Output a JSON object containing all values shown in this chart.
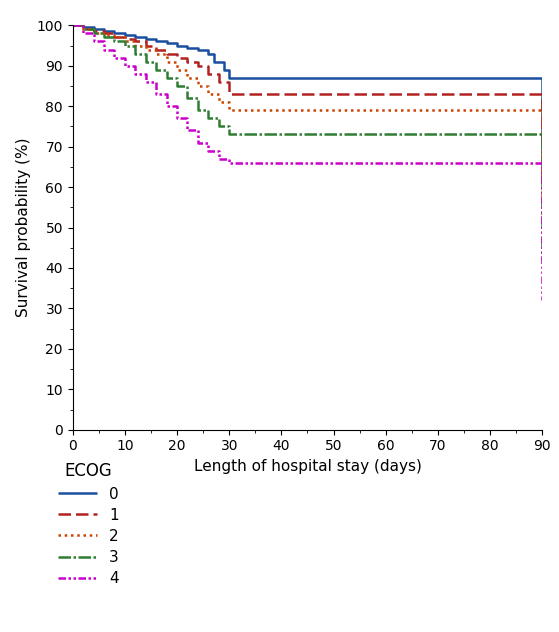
{
  "curves": {
    "0": {
      "x": [
        0,
        2,
        4,
        6,
        8,
        10,
        12,
        14,
        16,
        18,
        20,
        22,
        24,
        26,
        27,
        29,
        30,
        80,
        90
      ],
      "y": [
        100,
        99.5,
        99,
        98.5,
        98,
        97.5,
        97,
        96.5,
        96,
        95.5,
        95,
        94.5,
        94,
        93,
        91,
        89,
        87,
        87,
        69
      ],
      "color": "#1a4fa0",
      "label": "0"
    },
    "1": {
      "x": [
        0,
        2,
        4,
        6,
        8,
        10,
        12,
        14,
        16,
        18,
        20,
        22,
        24,
        26,
        28,
        30,
        80,
        90
      ],
      "y": [
        100,
        99,
        98.5,
        98,
        97,
        96.5,
        96,
        95,
        94,
        93,
        92,
        91,
        90,
        88,
        86,
        83,
        83,
        61
      ],
      "color": "#b22222",
      "label": "1"
    },
    "2": {
      "x": [
        0,
        2,
        4,
        6,
        8,
        10,
        12,
        14,
        16,
        18,
        20,
        22,
        24,
        26,
        28,
        30,
        80,
        90
      ],
      "y": [
        100,
        99,
        98,
        97.5,
        97,
        96,
        95,
        94,
        93,
        91,
        89,
        87,
        85,
        83,
        81,
        79,
        79,
        52
      ],
      "color": "#cc4400",
      "label": "2"
    },
    "3": {
      "x": [
        0,
        2,
        4,
        6,
        8,
        10,
        12,
        14,
        16,
        18,
        20,
        22,
        24,
        26,
        28,
        30,
        80,
        90
      ],
      "y": [
        100,
        99,
        98,
        97,
        96,
        95,
        93,
        91,
        89,
        87,
        85,
        82,
        79,
        77,
        75,
        73,
        73,
        42
      ],
      "color": "#2e7d32",
      "label": "3"
    },
    "4": {
      "x": [
        0,
        2,
        4,
        6,
        8,
        10,
        12,
        14,
        16,
        18,
        20,
        22,
        24,
        26,
        28,
        30,
        80,
        90
      ],
      "y": [
        100,
        98,
        96,
        94,
        92,
        90,
        88,
        86,
        83,
        80,
        77,
        74,
        71,
        69,
        67,
        66,
        66,
        32
      ],
      "color": "#cc00cc",
      "label": "4"
    }
  },
  "linestyles": {
    "0": [
      0,
      []
    ],
    "1": [
      0,
      [
        5,
        2
      ]
    ],
    "2": [
      0,
      [
        1,
        1.5
      ]
    ],
    "3": [
      0,
      [
        5,
        1,
        1,
        1
      ]
    ],
    "4": [
      0,
      [
        3,
        1,
        1,
        1,
        1,
        1
      ]
    ]
  },
  "linewidths": {
    "0": 1.8,
    "1": 1.8,
    "2": 1.8,
    "3": 1.8,
    "4": 1.8
  },
  "xlabel": "Length of hospital stay (days)",
  "ylabel": "Survival probability (%)",
  "xlim": [
    0,
    90
  ],
  "ylim": [
    0,
    100
  ],
  "xticks": [
    0,
    10,
    20,
    30,
    40,
    50,
    60,
    70,
    80,
    90
  ],
  "yticks": [
    0,
    10,
    20,
    30,
    40,
    50,
    60,
    70,
    80,
    90,
    100
  ],
  "legend_title": "ECOG",
  "background_color": "#ffffff",
  "figsize": [
    5.59,
    6.32
  ],
  "dpi": 100
}
